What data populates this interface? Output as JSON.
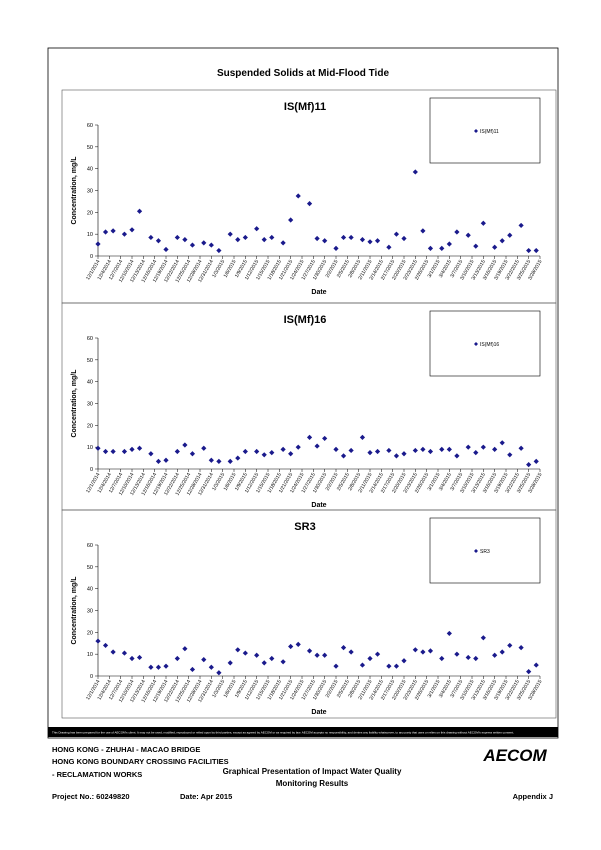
{
  "title": "Suspended Solids at Mid-Flood Tide",
  "chart_data": [
    {
      "type": "scatter",
      "title": "IS(Mf)11",
      "x_label": "Date",
      "y_label": "Concentration, mg/L",
      "legend": "upper right",
      "x": [
        "12/1/2014",
        "12/3/2014",
        "12/5/2014",
        "12/8/2014",
        "12/10/2014",
        "12/12/2014",
        "12/15/2014",
        "12/17/2014",
        "12/19/2014",
        "12/22/2014",
        "12/24/2014",
        "12/26/2014",
        "12/29/2014",
        "12/31/2014",
        "1/2/2015",
        "1/5/2015",
        "1/7/2015",
        "1/9/2015",
        "1/12/2015",
        "1/14/2015",
        "1/16/2015",
        "1/19/2015",
        "1/21/2015",
        "1/23/2015",
        "1/26/2015",
        "1/28/2015",
        "1/30/2015",
        "2/2/2015",
        "2/4/2015",
        "2/6/2015",
        "2/9/2015",
        "2/11/2015",
        "2/13/2015",
        "2/16/2015",
        "2/18/2015",
        "2/20/2015",
        "2/23/2015",
        "2/25/2015",
        "2/27/2015",
        "3/2/2015",
        "3/4/2015",
        "3/6/2015",
        "3/9/2015",
        "3/11/2015",
        "3/13/2015",
        "3/16/2015",
        "3/18/2015",
        "3/20/2015",
        "3/23/2015",
        "3/25/2015",
        "3/27/2015"
      ],
      "series": [
        {
          "name": "IS(Mf)11",
          "color": "#1a1a8c",
          "values": [
            5.5,
            11,
            11.5,
            10,
            12,
            20.5,
            8.5,
            7,
            3,
            8.5,
            7.5,
            5,
            6,
            5,
            2.5,
            10,
            7.5,
            8.5,
            12.5,
            7.5,
            8.5,
            6,
            16.5,
            27.5,
            24,
            8,
            7,
            3.5,
            8.5,
            8.5,
            7.5,
            6.5,
            7,
            4,
            10,
            8,
            38.5,
            11.5,
            3.5,
            3.5,
            5.5,
            11,
            9.5,
            4.5,
            15,
            4,
            7,
            9.5,
            14,
            2.5,
            2.5
          ]
        }
      ],
      "xlim": [
        "12/1/2014",
        "3/28/2015"
      ],
      "ylim": [
        0,
        60
      ],
      "yticks": [
        0,
        10,
        20,
        30,
        40,
        50,
        60
      ],
      "xticks": [
        "12/1/2014",
        "12/4/2014",
        "12/7/2014",
        "12/10/2014",
        "12/13/2014",
        "12/16/2014",
        "12/19/2014",
        "12/22/2014",
        "12/25/2014",
        "12/28/2014",
        "12/31/2014",
        "1/3/2015",
        "1/6/2015",
        "1/9/2015",
        "1/12/2015",
        "1/15/2015",
        "1/18/2015",
        "1/21/2015",
        "1/24/2015",
        "1/27/2015",
        "1/30/2015",
        "2/2/2015",
        "2/5/2015",
        "2/8/2015",
        "2/11/2015",
        "2/14/2015",
        "2/17/2015",
        "2/20/2015",
        "2/23/2015",
        "2/26/2015",
        "3/1/2015",
        "3/4/2015",
        "3/7/2015",
        "3/10/2015",
        "3/13/2015",
        "3/16/2015",
        "3/19/2015",
        "3/22/2015",
        "3/25/2015",
        "3/28/2015"
      ]
    },
    {
      "type": "scatter",
      "title": "IS(Mf)16",
      "x_label": "Date",
      "y_label": "Concentration, mg/L",
      "legend": "upper right",
      "x": [
        "12/1/2014",
        "12/3/2014",
        "12/5/2014",
        "12/8/2014",
        "12/10/2014",
        "12/12/2014",
        "12/15/2014",
        "12/17/2014",
        "12/19/2014",
        "12/22/2014",
        "12/24/2014",
        "12/26/2014",
        "12/29/2014",
        "12/31/2014",
        "1/2/2015",
        "1/5/2015",
        "1/7/2015",
        "1/9/2015",
        "1/12/2015",
        "1/14/2015",
        "1/16/2015",
        "1/19/2015",
        "1/21/2015",
        "1/23/2015",
        "1/26/2015",
        "1/28/2015",
        "1/30/2015",
        "2/2/2015",
        "2/4/2015",
        "2/6/2015",
        "2/9/2015",
        "2/11/2015",
        "2/13/2015",
        "2/16/2015",
        "2/18/2015",
        "2/20/2015",
        "2/23/2015",
        "2/25/2015",
        "2/27/2015",
        "3/2/2015",
        "3/4/2015",
        "3/6/2015",
        "3/9/2015",
        "3/11/2015",
        "3/13/2015",
        "3/16/2015",
        "3/18/2015",
        "3/20/2015",
        "3/23/2015",
        "3/25/2015",
        "3/27/2015"
      ],
      "series": [
        {
          "name": "IS(Mf)16",
          "color": "#1a1a8c",
          "values": [
            9.5,
            8,
            8,
            8,
            9,
            9.5,
            7,
            3.5,
            4,
            8,
            11,
            7,
            9.5,
            4,
            3.5,
            3.5,
            5,
            8,
            8,
            6.5,
            7.5,
            9,
            7,
            10,
            14.5,
            10.5,
            14,
            9,
            6,
            8.5,
            14.5,
            7.5,
            8,
            8.5,
            6,
            7,
            8.5,
            9,
            8,
            9,
            9,
            6,
            10,
            7.5,
            10,
            9,
            12,
            6.5,
            9.5,
            2,
            3.5
          ]
        }
      ],
      "xlim": [
        "12/1/2014",
        "3/28/2015"
      ],
      "ylim": [
        0,
        60
      ],
      "yticks": [
        0,
        10,
        20,
        30,
        40,
        50,
        60
      ],
      "xticks": [
        "12/1/2014",
        "12/4/2014",
        "12/7/2014",
        "12/10/2014",
        "12/13/2014",
        "12/16/2014",
        "12/19/2014",
        "12/22/2014",
        "12/25/2014",
        "12/28/2014",
        "12/31/2014",
        "1/3/2015",
        "1/6/2015",
        "1/9/2015",
        "1/12/2015",
        "1/15/2015",
        "1/18/2015",
        "1/21/2015",
        "1/24/2015",
        "1/27/2015",
        "1/30/2015",
        "2/2/2015",
        "2/5/2015",
        "2/8/2015",
        "2/11/2015",
        "2/14/2015",
        "2/17/2015",
        "2/20/2015",
        "2/23/2015",
        "2/26/2015",
        "3/1/2015",
        "3/4/2015",
        "3/7/2015",
        "3/10/2015",
        "3/13/2015",
        "3/16/2015",
        "3/19/2015",
        "3/22/2015",
        "3/25/2015",
        "3/28/2015"
      ]
    },
    {
      "type": "scatter",
      "title": "SR3",
      "x_label": "Date",
      "y_label": "Concentration, mg/L",
      "legend": "upper right",
      "x": [
        "12/1/2014",
        "12/3/2014",
        "12/5/2014",
        "12/8/2014",
        "12/10/2014",
        "12/12/2014",
        "12/15/2014",
        "12/17/2014",
        "12/19/2014",
        "12/22/2014",
        "12/24/2014",
        "12/26/2014",
        "12/29/2014",
        "12/31/2014",
        "1/2/2015",
        "1/5/2015",
        "1/7/2015",
        "1/9/2015",
        "1/12/2015",
        "1/14/2015",
        "1/16/2015",
        "1/19/2015",
        "1/21/2015",
        "1/23/2015",
        "1/26/2015",
        "1/28/2015",
        "1/30/2015",
        "2/2/2015",
        "2/4/2015",
        "2/6/2015",
        "2/9/2015",
        "2/11/2015",
        "2/13/2015",
        "2/16/2015",
        "2/18/2015",
        "2/20/2015",
        "2/23/2015",
        "2/25/2015",
        "2/27/2015",
        "3/2/2015",
        "3/4/2015",
        "3/6/2015",
        "3/9/2015",
        "3/11/2015",
        "3/13/2015",
        "3/16/2015",
        "3/18/2015",
        "3/20/2015",
        "3/23/2015",
        "3/25/2015",
        "3/27/2015"
      ],
      "series": [
        {
          "name": "SR3",
          "color": "#1a1a8c",
          "values": [
            16,
            14,
            11,
            10.5,
            8,
            8.5,
            4,
            4,
            4.5,
            8,
            12.5,
            3,
            7.5,
            4,
            1.5,
            6,
            12,
            10.5,
            9.5,
            6,
            8,
            6.5,
            13.5,
            14.5,
            11.5,
            9.5,
            9.5,
            4.5,
            13,
            11,
            5,
            8,
            10,
            4.5,
            4.5,
            7,
            12,
            11,
            11.5,
            8,
            19.5,
            10,
            8.5,
            8,
            17.5,
            9.5,
            11,
            14,
            13,
            2,
            5
          ]
        }
      ],
      "xlim": [
        "12/1/2014",
        "3/28/2015"
      ],
      "ylim": [
        0,
        60
      ],
      "yticks": [
        0,
        10,
        20,
        30,
        40,
        50,
        60
      ],
      "xticks": [
        "12/1/2014",
        "12/4/2014",
        "12/7/2014",
        "12/10/2014",
        "12/13/2014",
        "12/16/2014",
        "12/19/2014",
        "12/22/2014",
        "12/25/2014",
        "12/28/2014",
        "12/31/2014",
        "1/3/2015",
        "1/6/2015",
        "1/9/2015",
        "1/12/2015",
        "1/15/2015",
        "1/18/2015",
        "1/21/2015",
        "1/24/2015",
        "1/27/2015",
        "1/30/2015",
        "2/2/2015",
        "2/5/2015",
        "2/8/2015",
        "2/11/2015",
        "2/14/2015",
        "2/17/2015",
        "2/20/2015",
        "2/23/2015",
        "2/26/2015",
        "3/1/2015",
        "3/4/2015",
        "3/7/2015",
        "3/10/2015",
        "3/13/2015",
        "3/16/2015",
        "3/19/2015",
        "3/22/2015",
        "3/25/2015",
        "3/28/2015"
      ]
    }
  ],
  "footer": {
    "disclaimer": "This Drawing has been prepared for the use of AECOM's client. It may not be used, modified, reproduced or relied upon by third parties, except as agreed by AECOM or as required by law. AECOM accepts no responsibility, and denies any liability whatsoever, to any party that uses or relies on this drawing without AECOM's express written consent.",
    "project_lines": [
      "HONG KONG - ZHUHAI - MACAO BRIDGE",
      "HONG KONG BOUNDARY CROSSING FACILITIES",
      "- RECLAMATION WORKS"
    ],
    "logo": "AECOM",
    "drawing_title": [
      "Graphical Presentation of Impact Water Quality",
      "Monitoring Results"
    ],
    "project_no": "Project No.: 60249820",
    "date": "Date: Apr 2015",
    "appendix": "Appendix J"
  }
}
